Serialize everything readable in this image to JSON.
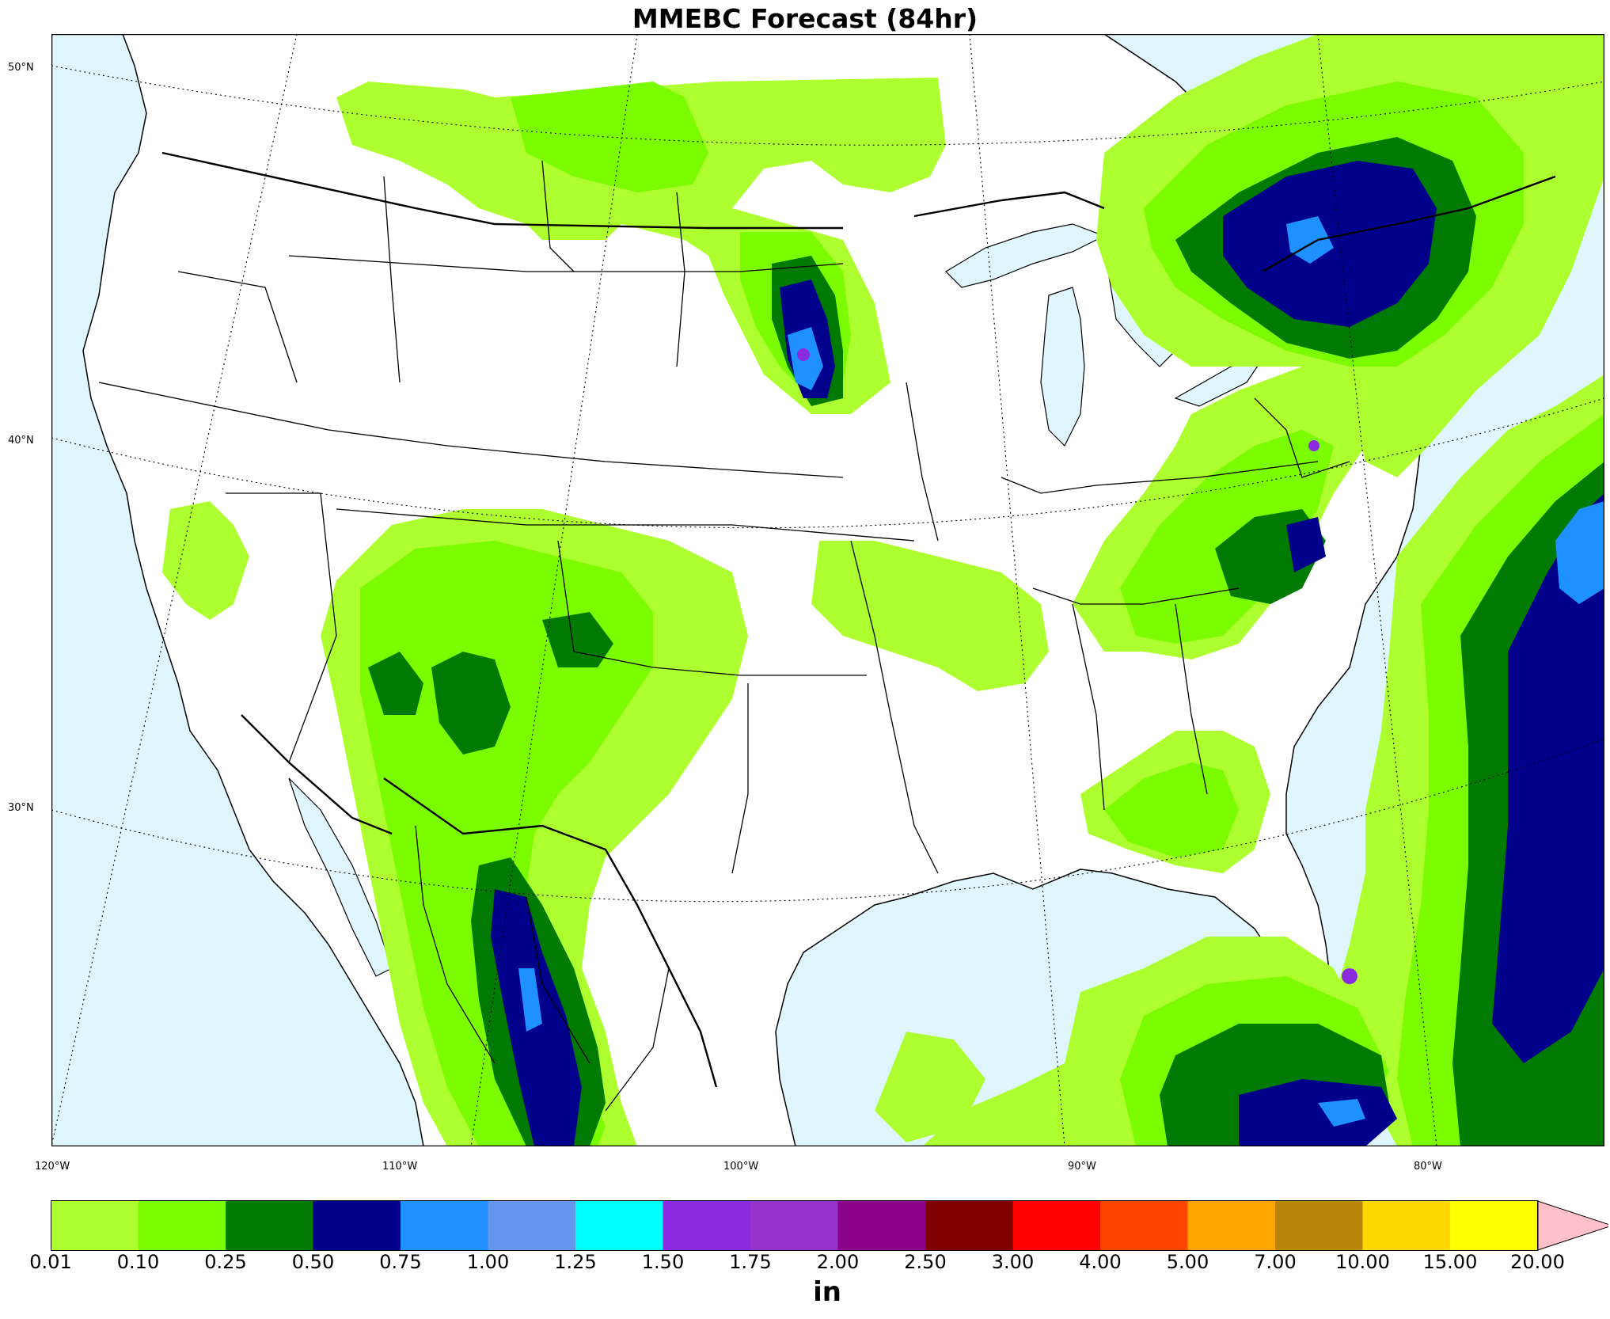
{
  "title": "MMEBC Forecast (84hr)",
  "units": "in",
  "lat_labels": [
    "50°N",
    "40°N",
    "30°N"
  ],
  "lon_labels": [
    "120°W",
    "110°W",
    "100°W",
    "90°W",
    "80°W"
  ],
  "colorbar": {
    "ticks": [
      "0.01",
      "0.10",
      "0.25",
      "0.50",
      "0.75",
      "1.00",
      "1.25",
      "1.50",
      "1.75",
      "2.00",
      "2.50",
      "3.00",
      "4.00",
      "5.00",
      "7.00",
      "10.00",
      "15.00",
      "20.00"
    ],
    "colors": [
      "#adff2f",
      "#7cfc00",
      "#007a00",
      "#00008b",
      "#1e90ff",
      "#6495ed",
      "#00ffff",
      "#8a2be2",
      "#9932cc",
      "#8b008b",
      "#800000",
      "#ff0000",
      "#ff4500",
      "#ffa500",
      "#b8860b",
      "#ffd700",
      "#ffff00"
    ],
    "extend_color": "#ffc0cb"
  },
  "colors": {
    "water": "#e0f6fe",
    "land": "#ffffff"
  }
}
